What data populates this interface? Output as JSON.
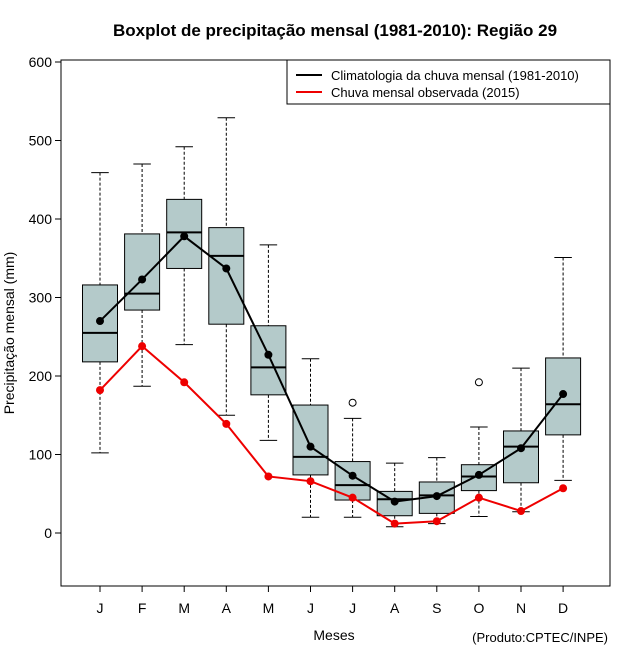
{
  "chart_data": {
    "type": "boxplot",
    "title": "Boxplot de precipitação mensal (1981-2010): Região 29",
    "xlabel": "Meses",
    "ylabel": "Precipitação mensal (mm)",
    "credit": "(Produto:CPTEC/INPE)",
    "ylim": [
      -70,
      610
    ],
    "yticks": [
      0,
      100,
      200,
      300,
      400,
      500,
      600
    ],
    "categories": [
      "J",
      "F",
      "M",
      "A",
      "M",
      "J",
      "J",
      "A",
      "S",
      "O",
      "N",
      "D"
    ],
    "boxes": [
      {
        "min": 102,
        "q1": 218,
        "median": 255,
        "q3": 316,
        "max": 459,
        "outliers": []
      },
      {
        "min": 187,
        "q1": 284,
        "median": 305,
        "q3": 381,
        "max": 470,
        "outliers": []
      },
      {
        "min": 240,
        "q1": 337,
        "median": 383,
        "q3": 425,
        "max": 492,
        "outliers": []
      },
      {
        "min": 150,
        "q1": 266,
        "median": 353,
        "q3": 389,
        "max": 529,
        "outliers": []
      },
      {
        "min": 118,
        "q1": 176,
        "median": 211,
        "q3": 264,
        "max": 367,
        "outliers": []
      },
      {
        "min": 20,
        "q1": 74,
        "median": 97,
        "q3": 163,
        "max": 222,
        "outliers": []
      },
      {
        "min": 20,
        "q1": 42,
        "median": 61,
        "q3": 91,
        "max": 146,
        "outliers": [
          166
        ]
      },
      {
        "min": 8,
        "q1": 22,
        "median": 43,
        "q3": 53,
        "max": 89,
        "outliers": []
      },
      {
        "min": 12,
        "q1": 25,
        "median": 48,
        "q3": 65,
        "max": 96,
        "outliers": []
      },
      {
        "min": 21,
        "q1": 54,
        "median": 72,
        "q3": 87,
        "max": 135,
        "outliers": [
          192
        ]
      },
      {
        "min": 27,
        "q1": 64,
        "median": 110,
        "q3": 130,
        "max": 210,
        "outliers": []
      },
      {
        "min": 67,
        "q1": 125,
        "median": 164,
        "q3": 223,
        "max": 351,
        "outliers": []
      }
    ],
    "series": [
      {
        "name": "Climatologia da chuva mensal (1981-2010)",
        "color": "#000000",
        "values": [
          270,
          323,
          378,
          337,
          227,
          110,
          73,
          40,
          47,
          74,
          108,
          177
        ]
      },
      {
        "name": "Chuva mensal observada (2015)",
        "color": "#ee0000",
        "values": [
          182,
          238,
          192,
          139,
          72,
          66,
          45,
          12,
          15,
          45,
          28,
          57
        ]
      }
    ],
    "box_fill": "#b4caca",
    "legend_position": "top-right"
  }
}
